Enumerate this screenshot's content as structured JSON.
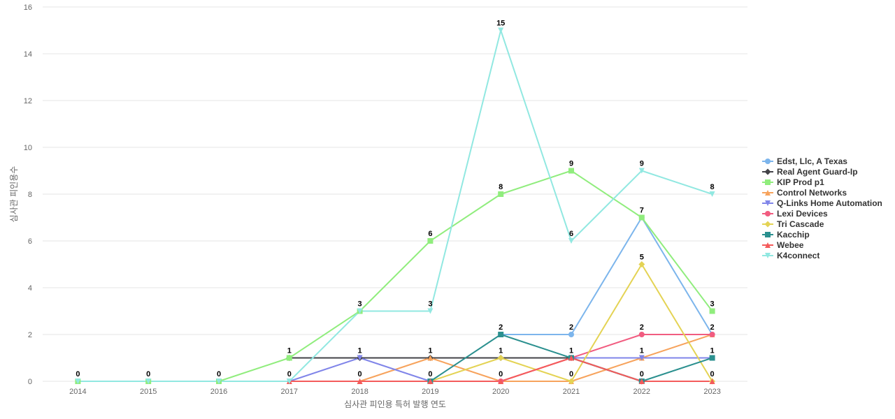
{
  "chart_data": {
    "type": "line",
    "title": "",
    "xlabel": "심사관 피인용 특허 발행 연도",
    "ylabel": "심사관 피인용수",
    "ylim": [
      0,
      16
    ],
    "yticks": [
      0,
      2,
      4,
      6,
      8,
      10,
      12,
      14,
      16
    ],
    "x": [
      "2014",
      "2015",
      "2016",
      "2017",
      "2018",
      "2019",
      "2020",
      "2021",
      "2022",
      "2023"
    ],
    "grid": true,
    "legend_position": "right",
    "series": [
      {
        "name": "Edst, Llc, A Texas",
        "color": "#7cb5ec",
        "marker": "circle",
        "values": [
          null,
          null,
          null,
          null,
          null,
          null,
          2,
          2,
          7,
          2
        ]
      },
      {
        "name": "Real Agent Guard-Ip",
        "color": "#434348",
        "marker": "diamond",
        "values": [
          null,
          null,
          null,
          1,
          1,
          1,
          1,
          1,
          0,
          null
        ]
      },
      {
        "name": "KIP Prod p1",
        "color": "#90ed7d",
        "marker": "square",
        "values": [
          0,
          0,
          0,
          1,
          3,
          6,
          8,
          9,
          7,
          3
        ]
      },
      {
        "name": "Control Networks",
        "color": "#f7a35c",
        "marker": "triangle",
        "values": [
          null,
          null,
          null,
          null,
          0,
          1,
          0,
          0,
          1,
          2
        ]
      },
      {
        "name": "Q-Links Home Automation",
        "color": "#8085e9",
        "marker": "triangle-down",
        "values": [
          null,
          null,
          null,
          0,
          1,
          0,
          null,
          1,
          1,
          1
        ]
      },
      {
        "name": "Lexi Devices",
        "color": "#f15c80",
        "marker": "circle",
        "values": [
          null,
          null,
          null,
          null,
          null,
          0,
          0,
          1,
          2,
          2
        ]
      },
      {
        "name": "Tri Cascade",
        "color": "#e4d354",
        "marker": "diamond",
        "values": [
          null,
          null,
          null,
          null,
          null,
          0,
          1,
          0,
          5,
          0
        ]
      },
      {
        "name": "Kacchip",
        "color": "#2b908f",
        "marker": "square",
        "values": [
          null,
          null,
          null,
          null,
          null,
          0,
          2,
          1,
          0,
          1
        ]
      },
      {
        "name": "Webee",
        "color": "#f45b5b",
        "marker": "triangle",
        "values": [
          null,
          null,
          null,
          0,
          0,
          0,
          0,
          1,
          0,
          0
        ]
      },
      {
        "name": "K4connect",
        "color": "#91e8e1",
        "marker": "triangle-down",
        "values": [
          0,
          0,
          0,
          0,
          3,
          3,
          15,
          6,
          9,
          8
        ]
      }
    ],
    "data_labels": [
      {
        "x": "2014",
        "text": "0",
        "series": "KIP Prod p1"
      },
      {
        "x": "2015",
        "text": "0",
        "series": "KIP Prod p1"
      },
      {
        "x": "2016",
        "text": "0",
        "series": "KIP Prod p1"
      },
      {
        "x": "2017",
        "text": "1",
        "series": "KIP Prod p1"
      },
      {
        "x": "2017",
        "text": "0",
        "series": "K4connect"
      },
      {
        "x": "2018",
        "text": "3",
        "series": "KIP Prod p1"
      },
      {
        "x": "2018",
        "text": "1",
        "series": "Q-Links Home Automation"
      },
      {
        "x": "2018",
        "text": "0",
        "series": "Control Networks"
      },
      {
        "x": "2019",
        "text": "6",
        "series": "KIP Prod p1"
      },
      {
        "x": "2019",
        "text": "3",
        "series": "K4connect"
      },
      {
        "x": "2019",
        "text": "1",
        "series": "Control Networks"
      },
      {
        "x": "2019",
        "text": "0",
        "series": "Q-Links Home Automation"
      },
      {
        "x": "2020",
        "text": "15",
        "series": "K4connect"
      },
      {
        "x": "2020",
        "text": "8",
        "series": "KIP Prod p1"
      },
      {
        "x": "2020",
        "text": "2",
        "series": "Kacchip"
      },
      {
        "x": "2020",
        "text": "1",
        "series": "Tri Cascade"
      },
      {
        "x": "2020",
        "text": "0",
        "series": "Control Networks"
      },
      {
        "x": "2021",
        "text": "9",
        "series": "KIP Prod p1"
      },
      {
        "x": "2021",
        "text": "6",
        "series": "K4connect"
      },
      {
        "x": "2021",
        "text": "2",
        "series": "Edst, Llc, A Texas"
      },
      {
        "x": "2021",
        "text": "1",
        "series": "Webee"
      },
      {
        "x": "2021",
        "text": "0",
        "series": "Tri Cascade"
      },
      {
        "x": "2022",
        "text": "9",
        "series": "K4connect"
      },
      {
        "x": "2022",
        "text": "7",
        "series": "KIP Prod p1"
      },
      {
        "x": "2022",
        "text": "5",
        "series": "Tri Cascade"
      },
      {
        "x": "2022",
        "text": "2",
        "series": "Lexi Devices"
      },
      {
        "x": "2022",
        "text": "1",
        "series": "Control Networks"
      },
      {
        "x": "2022",
        "text": "0",
        "series": "Kacchip"
      },
      {
        "x": "2023",
        "text": "8",
        "series": "K4connect"
      },
      {
        "x": "2023",
        "text": "3",
        "series": "KIP Prod p1"
      },
      {
        "x": "2023",
        "text": "2",
        "series": "Lexi Devices"
      },
      {
        "x": "2023",
        "text": "1",
        "series": "Kacchip"
      },
      {
        "x": "2023",
        "text": "0",
        "series": "Webee"
      }
    ]
  }
}
